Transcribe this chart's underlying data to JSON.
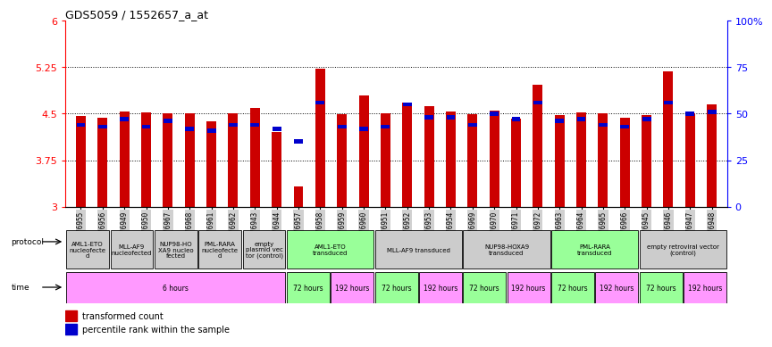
{
  "title": "GDS5059 / 1552657_a_at",
  "samples": [
    "GSM1376955",
    "GSM1376956",
    "GSM1376949",
    "GSM1376950",
    "GSM1376967",
    "GSM1376968",
    "GSM1376961",
    "GSM1376962",
    "GSM1376943",
    "GSM1376944",
    "GSM1376957",
    "GSM1376958",
    "GSM1376959",
    "GSM1376960",
    "GSM1376951",
    "GSM1376952",
    "GSM1376953",
    "GSM1376954",
    "GSM1376969",
    "GSM1376970",
    "GSM1376971",
    "GSM1376972",
    "GSM1376963",
    "GSM1376964",
    "GSM1376965",
    "GSM1376966",
    "GSM1376945",
    "GSM1376946",
    "GSM1376947",
    "GSM1376948"
  ],
  "red_values": [
    4.47,
    4.44,
    4.53,
    4.52,
    4.51,
    4.5,
    4.38,
    4.5,
    4.6,
    4.2,
    3.32,
    5.22,
    4.49,
    4.8,
    4.51,
    4.68,
    4.62,
    4.54,
    4.49,
    4.55,
    4.42,
    4.97,
    4.48,
    4.52,
    4.51,
    4.43,
    4.48,
    5.18,
    4.5,
    4.65
  ],
  "blue_values": [
    44,
    43,
    47,
    43,
    46,
    42,
    41,
    44,
    44,
    42,
    35,
    56,
    43,
    42,
    43,
    55,
    48,
    48,
    44,
    50,
    47,
    56,
    46,
    47,
    44,
    43,
    47,
    56,
    50,
    51
  ],
  "ylim_left": [
    3.0,
    6.0
  ],
  "ylim_right": [
    0,
    100
  ],
  "left_ticks": [
    3,
    3.75,
    4.5,
    5.25,
    6
  ],
  "right_ticks": [
    0,
    25,
    50,
    75,
    100
  ],
  "right_tick_labels": [
    "0",
    "25",
    "50",
    "75",
    "100%"
  ],
  "hlines": [
    3.75,
    4.5,
    5.25
  ],
  "bar_color": "#cc0000",
  "blue_color": "#0000cc",
  "bg_color": "#ffffff",
  "protocol_groups": [
    {
      "text": "AML1-ETO\nnucleofecte\nd",
      "start": 0,
      "end": 2,
      "color": "#cccccc"
    },
    {
      "text": "MLL-AF9\nnucleofected",
      "start": 2,
      "end": 4,
      "color": "#cccccc"
    },
    {
      "text": "NUP98-HO\nXA9 nucleo\nfected",
      "start": 4,
      "end": 6,
      "color": "#cccccc"
    },
    {
      "text": "PML-RARA\nnucleofecte\nd",
      "start": 6,
      "end": 8,
      "color": "#cccccc"
    },
    {
      "text": "empty\nplasmid vec\ntor (control)",
      "start": 8,
      "end": 10,
      "color": "#cccccc"
    },
    {
      "text": "AML1-ETO\ntransduced",
      "start": 10,
      "end": 14,
      "color": "#99ff99"
    },
    {
      "text": "MLL-AF9 transduced",
      "start": 14,
      "end": 18,
      "color": "#cccccc"
    },
    {
      "text": "NUP98-HOXA9\ntransduced",
      "start": 18,
      "end": 22,
      "color": "#cccccc"
    },
    {
      "text": "PML-RARA\ntransduced",
      "start": 22,
      "end": 26,
      "color": "#99ff99"
    },
    {
      "text": "empty retroviral vector\n(control)",
      "start": 26,
      "end": 30,
      "color": "#cccccc"
    }
  ],
  "time_groups": [
    {
      "text": "6 hours",
      "start": 0,
      "end": 10,
      "color": "#ff99ff"
    },
    {
      "text": "72 hours",
      "start": 10,
      "end": 12,
      "color": "#99ff99"
    },
    {
      "text": "192 hours",
      "start": 12,
      "end": 14,
      "color": "#ff99ff"
    },
    {
      "text": "72 hours",
      "start": 14,
      "end": 16,
      "color": "#99ff99"
    },
    {
      "text": "192 hours",
      "start": 16,
      "end": 18,
      "color": "#ff99ff"
    },
    {
      "text": "72 hours",
      "start": 18,
      "end": 20,
      "color": "#99ff99"
    },
    {
      "text": "192 hours",
      "start": 20,
      "end": 22,
      "color": "#ff99ff"
    },
    {
      "text": "72 hours",
      "start": 22,
      "end": 24,
      "color": "#99ff99"
    },
    {
      "text": "192 hours",
      "start": 24,
      "end": 26,
      "color": "#ff99ff"
    },
    {
      "text": "72 hours",
      "start": 26,
      "end": 28,
      "color": "#99ff99"
    },
    {
      "text": "192 hours",
      "start": 28,
      "end": 30,
      "color": "#ff99ff"
    }
  ]
}
